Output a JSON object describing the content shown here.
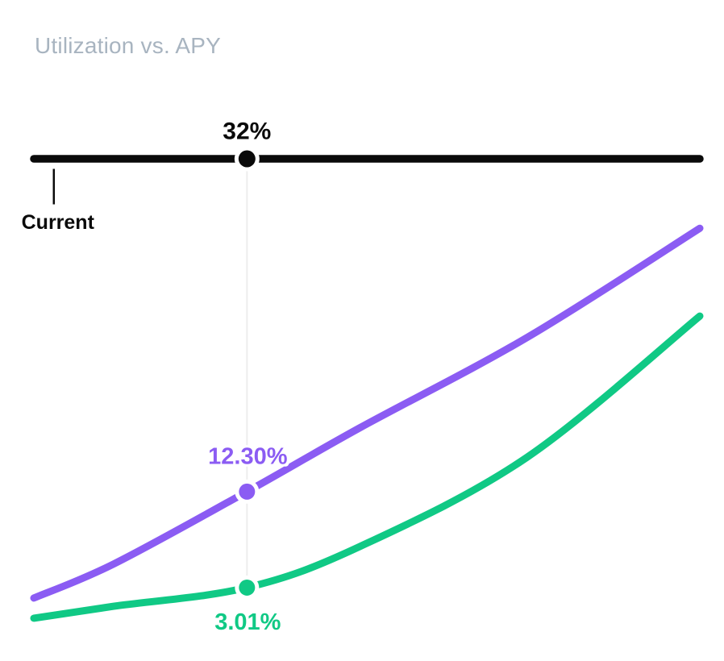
{
  "chart_data": {
    "type": "line",
    "title": "Utilization vs. APY",
    "title_color": "#a8b4c0",
    "x_axis": {
      "label": "Utilization",
      "range": [
        0,
        100
      ],
      "unit": "%"
    },
    "y_axis": {
      "label": "APY",
      "range": [
        0,
        45
      ],
      "unit": "%"
    },
    "grid": false,
    "legend": false,
    "background": "#ffffff",
    "guide_line_color": "#ededed",
    "slider": {
      "value": 32,
      "label": "32%",
      "color": "#0a0a0a"
    },
    "annotation": {
      "label": "Current",
      "x": 3
    },
    "series": [
      {
        "name": "purple",
        "color": "#8b5cf3",
        "marker_label": "12.30%",
        "marker_value": 12.3,
        "points": [
          [
            0,
            2.0
          ],
          [
            12,
            5.3
          ],
          [
            32,
            12.3
          ],
          [
            49,
            18.5
          ],
          [
            74,
            27.2
          ],
          [
            100,
            37.8
          ]
        ]
      },
      {
        "name": "green",
        "color": "#10c985",
        "marker_label": "3.01%",
        "marker_value": 3.01,
        "points": [
          [
            0,
            0.05
          ],
          [
            12,
            1.2
          ],
          [
            32,
            3.01
          ],
          [
            49,
            7.0
          ],
          [
            74,
            15.6
          ],
          [
            100,
            29.3
          ]
        ]
      }
    ]
  }
}
